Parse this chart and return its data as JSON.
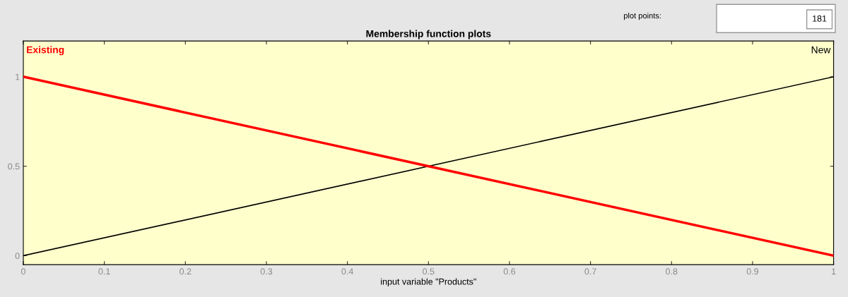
{
  "chart_data": {
    "type": "line",
    "title": "Membership function plots",
    "xlabel": "input variable \"Products\"",
    "x": [
      0,
      1
    ],
    "series": [
      {
        "name": "Existing",
        "color": "#ff0000",
        "values": [
          1,
          0
        ]
      },
      {
        "name": "New",
        "color": "#000000",
        "values": [
          0,
          1
        ]
      }
    ],
    "xlim": [
      0,
      1
    ],
    "xticks": [
      0,
      0.1,
      0.2,
      0.3,
      0.4,
      0.5,
      0.6,
      0.7,
      0.8,
      0.9,
      1
    ],
    "ylim": [
      -0.05,
      1.2
    ],
    "yticks": [
      0,
      0.5,
      1
    ],
    "grid": false,
    "legend": false,
    "marker": "none",
    "line_style": "solid",
    "annotations": [
      "plot points:",
      "181"
    ]
  }
}
